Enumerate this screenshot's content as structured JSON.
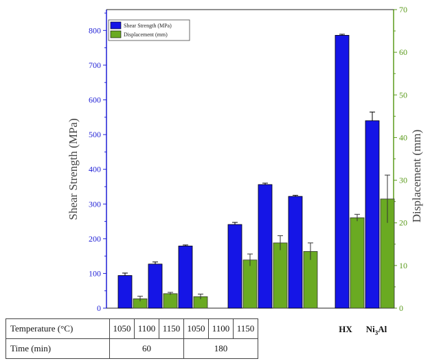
{
  "chart_data": {
    "type": "bar",
    "categories": [
      "1050",
      "1100",
      "1150",
      "1050",
      "1100",
      "1150",
      "HX",
      "Ni3Al"
    ],
    "series": [
      {
        "name": "Shear Strength (MPa)",
        "axis": "left",
        "color": "#1515e6",
        "values": [
          94,
          127,
          179,
          241,
          356,
          322,
          786,
          540
        ],
        "errors": [
          7,
          6,
          3,
          6,
          4,
          3,
          3,
          25
        ]
      },
      {
        "name": "Displacement (mm)",
        "axis": "right",
        "color": "#6aaa22",
        "values": [
          2.2,
          3.4,
          2.7,
          11.3,
          15.3,
          13.3,
          21.2,
          25.6
        ],
        "errors": [
          0.6,
          0.3,
          0.6,
          1.4,
          1.7,
          2.0,
          0.8,
          5.6
        ]
      }
    ],
    "ylabel": "Shear Strength (MPa)",
    "ylabel_right": "Displacement (mm)",
    "ylim": [
      0,
      860
    ],
    "ylim_right": [
      0,
      70
    ],
    "yticks": [
      0,
      100,
      200,
      300,
      400,
      500,
      600,
      700,
      800
    ],
    "yticks_right": [
      0,
      10,
      20,
      30,
      40,
      50,
      60,
      70
    ],
    "grid": false,
    "legend_position": "top-left"
  },
  "table": {
    "row1_label": "Temperature (°C)",
    "row2_label": "Time (min)",
    "temps": [
      "1050",
      "1100",
      "1150",
      "1050",
      "1100",
      "1150"
    ],
    "times": [
      "60",
      "180"
    ],
    "hx": "HX",
    "ni_main": "Ni",
    "ni_sub": "3",
    "ni_tail": "Al"
  }
}
